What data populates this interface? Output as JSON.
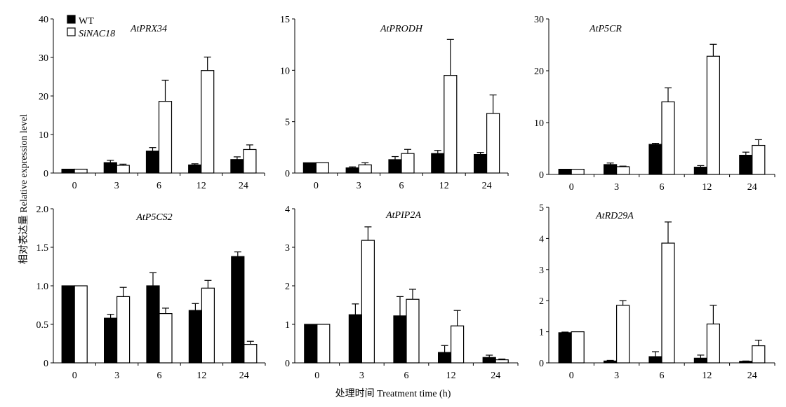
{
  "figure": {
    "ylabel": "相对表达量 Relative expression level",
    "xlabel": "处理时间 Treatment time (h)"
  },
  "legend": {
    "items": [
      {
        "label": "WT",
        "fill": "#000000",
        "italic": false
      },
      {
        "label": "SiNAC18",
        "fill": "#ffffff",
        "italic": true
      }
    ]
  },
  "colors": {
    "wt": "#000000",
    "sinac18": "#ffffff",
    "stroke": "#000000"
  },
  "chart_data": [
    {
      "type": "bar",
      "title": "AtPRX34",
      "categories": [
        "0",
        "3",
        "6",
        "12",
        "24"
      ],
      "ylim": [
        0,
        40
      ],
      "yticks": [
        0,
        10,
        20,
        30,
        40
      ],
      "series": [
        {
          "name": "WT",
          "values": [
            1.0,
            2.7,
            5.7,
            2.1,
            3.5
          ],
          "errors": [
            0.0,
            0.6,
            0.9,
            0.3,
            0.7
          ]
        },
        {
          "name": "SiNAC18",
          "values": [
            1.0,
            2.0,
            18.6,
            26.6,
            6.1
          ],
          "errors": [
            0.0,
            0.3,
            5.5,
            3.5,
            1.2
          ]
        }
      ]
    },
    {
      "type": "bar",
      "title": "AtPRODH",
      "categories": [
        "0",
        "3",
        "6",
        "12",
        "24"
      ],
      "ylim": [
        0,
        15
      ],
      "yticks": [
        0,
        5,
        10,
        15
      ],
      "series": [
        {
          "name": "WT",
          "values": [
            1.0,
            0.5,
            1.3,
            1.9,
            1.8
          ],
          "errors": [
            0.0,
            0.1,
            0.3,
            0.3,
            0.2
          ]
        },
        {
          "name": "SiNAC18",
          "values": [
            1.0,
            0.8,
            1.9,
            9.5,
            5.8
          ],
          "errors": [
            0.0,
            0.2,
            0.4,
            3.5,
            1.8
          ]
        }
      ]
    },
    {
      "type": "bar",
      "title": "AtP5CR",
      "categories": [
        "0",
        "3",
        "6",
        "12",
        "24"
      ],
      "ylim": [
        0,
        30
      ],
      "yticks": [
        0,
        10,
        20,
        30
      ],
      "series": [
        {
          "name": "WT",
          "values": [
            1.0,
            1.9,
            5.8,
            1.4,
            3.7
          ],
          "errors": [
            0.0,
            0.3,
            0.2,
            0.3,
            0.6
          ]
        },
        {
          "name": "SiNAC18",
          "values": [
            1.0,
            1.5,
            14.0,
            22.8,
            5.6
          ],
          "errors": [
            0.0,
            0.1,
            2.7,
            2.3,
            1.1
          ]
        }
      ]
    },
    {
      "type": "bar",
      "title": "AtP5CS2",
      "categories": [
        "0",
        "3",
        "6",
        "12",
        "24"
      ],
      "ylim": [
        0,
        2.0
      ],
      "yticks": [
        "0",
        "0.5",
        "1.0",
        "1.5",
        "2.0"
      ],
      "series": [
        {
          "name": "WT",
          "values": [
            1.0,
            0.58,
            1.0,
            0.68,
            1.38
          ],
          "errors": [
            0.0,
            0.05,
            0.17,
            0.09,
            0.06
          ]
        },
        {
          "name": "SiNAC18",
          "values": [
            1.0,
            0.86,
            0.64,
            0.97,
            0.24
          ],
          "errors": [
            0.0,
            0.12,
            0.07,
            0.1,
            0.04
          ]
        }
      ]
    },
    {
      "type": "bar",
      "title": "AtPIP2A",
      "categories": [
        "0",
        "3",
        "6",
        "12",
        "24"
      ],
      "ylim": [
        0,
        4
      ],
      "yticks": [
        0,
        1,
        2,
        3,
        4
      ],
      "series": [
        {
          "name": "WT",
          "values": [
            1.0,
            1.25,
            1.22,
            0.27,
            0.14
          ],
          "errors": [
            0.0,
            0.28,
            0.5,
            0.18,
            0.06
          ]
        },
        {
          "name": "SiNAC18",
          "values": [
            1.0,
            3.18,
            1.65,
            0.96,
            0.08
          ],
          "errors": [
            0.0,
            0.35,
            0.26,
            0.4,
            0.02
          ]
        }
      ]
    },
    {
      "type": "bar",
      "title": "AtRD29A",
      "categories": [
        "0",
        "3",
        "6",
        "12",
        "24"
      ],
      "ylim": [
        0,
        5
      ],
      "yticks": [
        0,
        1,
        2,
        3,
        4,
        5
      ],
      "series": [
        {
          "name": "WT",
          "values": [
            0.97,
            0.06,
            0.2,
            0.15,
            0.05
          ],
          "errors": [
            0.02,
            0.02,
            0.16,
            0.1,
            0.01
          ]
        },
        {
          "name": "SiNAC18",
          "values": [
            1.0,
            1.85,
            3.85,
            1.25,
            0.55
          ],
          "errors": [
            0.0,
            0.15,
            0.68,
            0.6,
            0.18
          ]
        }
      ]
    }
  ]
}
